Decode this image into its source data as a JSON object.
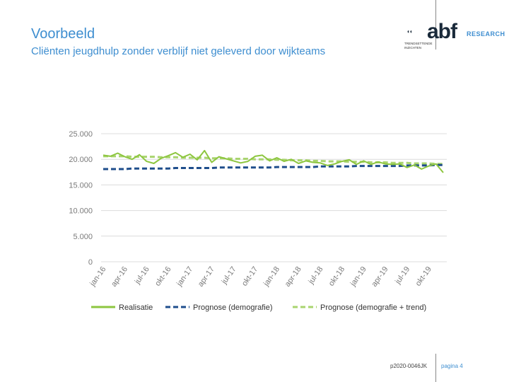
{
  "header": {
    "title": "Voorbeeld",
    "subtitle": "Cliënten jeugdhulp zonder verblijf niet geleverd door wijkteams"
  },
  "logo": {
    "mark": "◖◖",
    "name": "abf",
    "research": "RESEARCH",
    "tagline": "TRENDSETTENDE INZICHTEN"
  },
  "footer": {
    "reference": "p2020-0046JK",
    "page": "pagina 4"
  },
  "colors": {
    "accent": "#3e8ed0",
    "realisatie": "#8dc63f",
    "prognose_demografie": "#1f4e8c",
    "prognose_trend": "#a9d46f",
    "grid": "#dcdcdc"
  },
  "chart_data": {
    "type": "line",
    "title": "",
    "xlabel": "",
    "ylabel": "",
    "ylim": [
      0,
      25000
    ],
    "yticks": [
      0,
      5000,
      10000,
      15000,
      20000,
      25000
    ],
    "ytick_labels": [
      "0",
      "5.000",
      "10.000",
      "15.000",
      "20.000",
      "25.000"
    ],
    "x_tick_labels": [
      "jan-16",
      "apr-16",
      "jul-16",
      "okt-16",
      "jan-17",
      "apr-17",
      "jul-17",
      "okt-17",
      "jan-18",
      "apr-18",
      "jul-18",
      "okt-18",
      "jan-19",
      "apr-19",
      "jul-19",
      "okt-19"
    ],
    "x_months": [
      "jan-16",
      "feb-16",
      "mrt-16",
      "apr-16",
      "mei-16",
      "jun-16",
      "jul-16",
      "aug-16",
      "sep-16",
      "okt-16",
      "nov-16",
      "dec-16",
      "jan-17",
      "feb-17",
      "mrt-17",
      "apr-17",
      "mei-17",
      "jun-17",
      "jul-17",
      "aug-17",
      "sep-17",
      "okt-17",
      "nov-17",
      "dec-17",
      "jan-18",
      "feb-18",
      "mrt-18",
      "apr-18",
      "mei-18",
      "jun-18",
      "jul-18",
      "aug-18",
      "sep-18",
      "okt-18",
      "nov-18",
      "dec-18",
      "jan-19",
      "feb-19",
      "mrt-19",
      "apr-19",
      "mei-19",
      "jun-19",
      "jul-19",
      "aug-19",
      "sep-19",
      "okt-19",
      "nov-19",
      "dec-19"
    ],
    "grid": true,
    "legend_position": "bottom",
    "series": [
      {
        "name": "Realisatie",
        "style": "solid",
        "values": [
          20800,
          20600,
          21200,
          20500,
          20000,
          20900,
          19600,
          19200,
          20200,
          20700,
          21300,
          20400,
          21000,
          19900,
          21700,
          19400,
          20500,
          20100,
          19700,
          19300,
          19600,
          20600,
          20800,
          19700,
          20300,
          19600,
          20000,
          19200,
          19700,
          19400,
          19300,
          18800,
          19100,
          19600,
          19900,
          19000,
          19700,
          19000,
          19500,
          19100,
          19000,
          19100,
          18400,
          18900,
          18100,
          18700,
          19100,
          17400
        ]
      },
      {
        "name": "Prognose (demografie)",
        "style": "dashed",
        "values": [
          18100,
          18100,
          18100,
          18100,
          18200,
          18200,
          18200,
          18200,
          18200,
          18200,
          18300,
          18300,
          18300,
          18300,
          18300,
          18300,
          18400,
          18400,
          18400,
          18400,
          18400,
          18400,
          18400,
          18400,
          18500,
          18500,
          18500,
          18500,
          18500,
          18500,
          18600,
          18600,
          18600,
          18600,
          18600,
          18700,
          18700,
          18700,
          18700,
          18700,
          18700,
          18700,
          18800,
          18800,
          18800,
          18800,
          18900,
          18900
        ]
      },
      {
        "name": "Prognose (demografie + trend)",
        "style": "dashed",
        "values": [
          20600,
          20600,
          20600,
          20600,
          20500,
          20500,
          20500,
          20500,
          20400,
          20400,
          20400,
          20300,
          20300,
          20300,
          20300,
          20200,
          20200,
          20200,
          20100,
          20100,
          20100,
          20000,
          20000,
          20000,
          19900,
          19900,
          19800,
          19800,
          19800,
          19700,
          19700,
          19600,
          19600,
          19600,
          19500,
          19500,
          19500,
          19400,
          19400,
          19400,
          19300,
          19300,
          19300,
          19200,
          19200,
          19200,
          19100,
          19100
        ]
      }
    ]
  }
}
